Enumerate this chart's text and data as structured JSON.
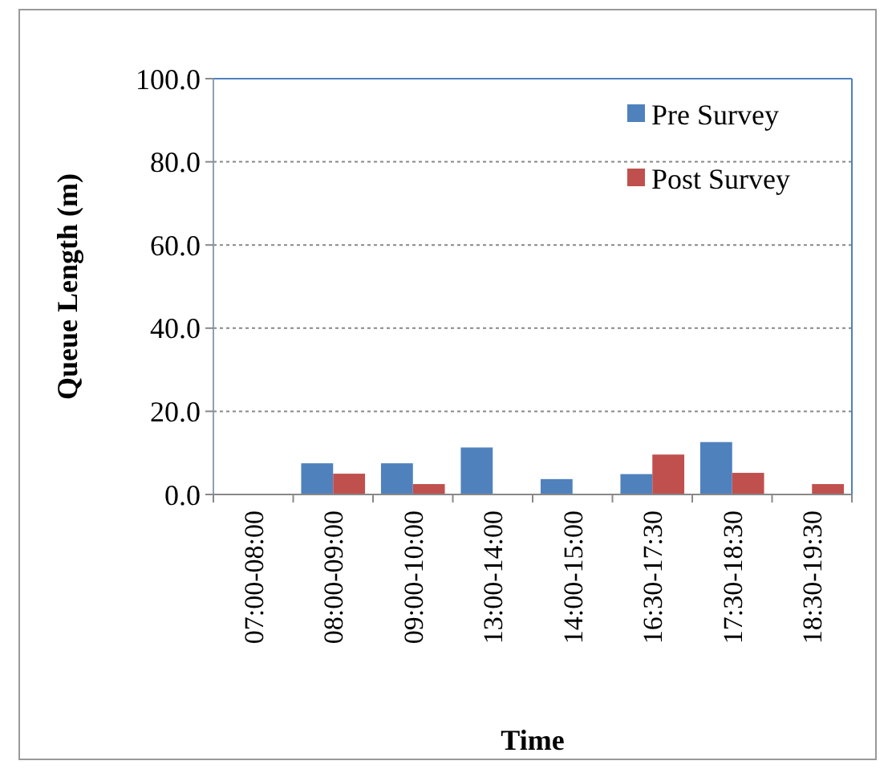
{
  "chart_data": {
    "type": "bar",
    "xlabel": "Time",
    "ylabel": "Queue Length (m)",
    "categories": [
      "07:00-08:00",
      "08:00-09:00",
      "09:00-10:00",
      "13:00-14:00",
      "14:00-15:00",
      "16:30-17:30",
      "17:30-18:30",
      "18:30-19:30"
    ],
    "series": [
      {
        "name": "Pre Survey",
        "color": "#4f81bd",
        "values": [
          0,
          7.5,
          7.5,
          11.3,
          3.7,
          4.9,
          12.6,
          0
        ]
      },
      {
        "name": "Post Survey",
        "color": "#c0504d",
        "values": [
          0,
          5.0,
          2.5,
          0,
          0,
          9.6,
          5.2,
          2.5
        ]
      }
    ],
    "ylim": [
      0,
      100
    ],
    "yticks": [
      {
        "value": 0,
        "label": "0.0"
      },
      {
        "value": 20,
        "label": "20.0"
      },
      {
        "value": 40,
        "label": "40.0"
      },
      {
        "value": 60,
        "label": "60.0"
      },
      {
        "value": 80,
        "label": "80.0"
      },
      {
        "value": 100,
        "label": "100.0"
      }
    ],
    "grid": "y",
    "legend": "top right"
  }
}
